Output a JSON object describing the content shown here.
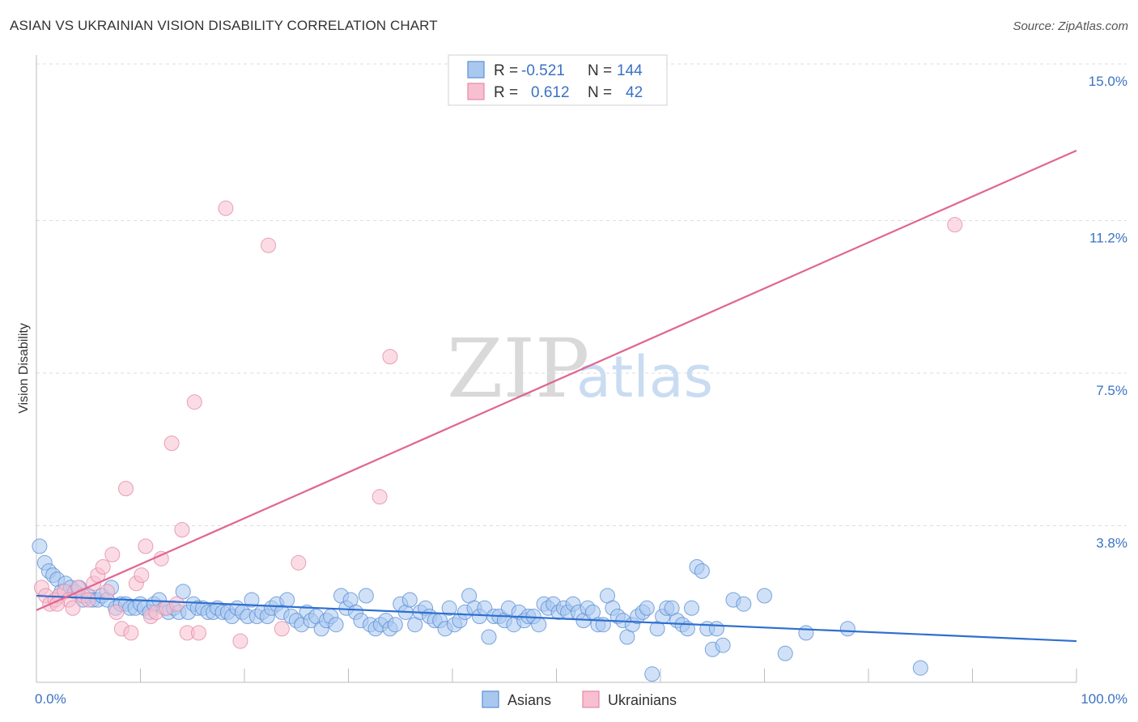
{
  "title": "ASIAN VS UKRAINIAN VISION DISABILITY CORRELATION CHART",
  "source": "Source: ZipAtlas.com",
  "watermark": {
    "zip": "ZIP",
    "atlas": "atlas"
  },
  "legend_box": {
    "rows": [
      {
        "r_label": "R =",
        "r_value": "-0.521",
        "n_label": "N =",
        "n_value": "144",
        "color": "#a9c8f0",
        "stroke": "#5b8fd6"
      },
      {
        "r_label": "R =",
        "r_value": "0.612",
        "n_label": "N =",
        "n_value": "42",
        "color": "#f7bfd0",
        "stroke": "#e48aa8"
      }
    ]
  },
  "chart_data": {
    "type": "scatter",
    "title": "ASIAN VS UKRAINIAN VISION DISABILITY CORRELATION CHART",
    "xlabel": "",
    "ylabel": "Vision Disability",
    "xlim": [
      0,
      100
    ],
    "ylim": [
      0,
      15.0
    ],
    "x_tick_labels": [
      "0.0%",
      "100.0%"
    ],
    "y_ticks": [
      3.8,
      7.5,
      11.2,
      15.0
    ],
    "y_tick_labels": [
      "3.8%",
      "7.5%",
      "11.2%",
      "15.0%"
    ],
    "legend": [
      "Asians",
      "Ukrainians"
    ],
    "series": [
      {
        "name": "Asians",
        "color": "#5b8fd6",
        "fill": "#a9c8f0",
        "trend": {
          "x": [
            0,
            100
          ],
          "y": [
            2.1,
            1.0
          ]
        },
        "points": [
          [
            0.3,
            3.3
          ],
          [
            0.8,
            2.9
          ],
          [
            1.2,
            2.7
          ],
          [
            1.6,
            2.6
          ],
          [
            2.0,
            2.5
          ],
          [
            2.4,
            2.2
          ],
          [
            2.8,
            2.4
          ],
          [
            3.3,
            2.3
          ],
          [
            3.7,
            2.2
          ],
          [
            4.1,
            2.3
          ],
          [
            4.5,
            2.0
          ],
          [
            5.0,
            2.1
          ],
          [
            5.4,
            2.0
          ],
          [
            5.9,
            2.0
          ],
          [
            6.3,
            2.1
          ],
          [
            6.8,
            2.0
          ],
          [
            7.2,
            2.3
          ],
          [
            7.6,
            1.8
          ],
          [
            8.1,
            1.9
          ],
          [
            8.6,
            1.9
          ],
          [
            9.0,
            1.8
          ],
          [
            9.5,
            1.8
          ],
          [
            10.0,
            1.9
          ],
          [
            10.4,
            1.8
          ],
          [
            10.9,
            1.7
          ],
          [
            11.3,
            1.9
          ],
          [
            11.8,
            2.0
          ],
          [
            12.3,
            1.8
          ],
          [
            12.7,
            1.7
          ],
          [
            13.2,
            1.8
          ],
          [
            13.7,
            1.7
          ],
          [
            14.1,
            2.2
          ],
          [
            14.6,
            1.7
          ],
          [
            15.1,
            1.9
          ],
          [
            15.5,
            1.8
          ],
          [
            16.0,
            1.8
          ],
          [
            16.5,
            1.7
          ],
          [
            17.0,
            1.7
          ],
          [
            17.4,
            1.8
          ],
          [
            17.9,
            1.7
          ],
          [
            18.4,
            1.7
          ],
          [
            18.8,
            1.6
          ],
          [
            19.3,
            1.8
          ],
          [
            19.8,
            1.7
          ],
          [
            20.3,
            1.6
          ],
          [
            20.7,
            2.0
          ],
          [
            21.2,
            1.6
          ],
          [
            21.7,
            1.7
          ],
          [
            22.2,
            1.6
          ],
          [
            22.6,
            1.8
          ],
          [
            23.1,
            1.9
          ],
          [
            23.6,
            1.7
          ],
          [
            24.1,
            2.0
          ],
          [
            24.5,
            1.6
          ],
          [
            25.0,
            1.5
          ],
          [
            25.5,
            1.4
          ],
          [
            26.0,
            1.7
          ],
          [
            26.4,
            1.5
          ],
          [
            26.9,
            1.6
          ],
          [
            27.4,
            1.3
          ],
          [
            27.9,
            1.5
          ],
          [
            28.3,
            1.6
          ],
          [
            28.8,
            1.4
          ],
          [
            29.3,
            2.1
          ],
          [
            29.8,
            1.8
          ],
          [
            30.2,
            2.0
          ],
          [
            30.7,
            1.7
          ],
          [
            31.2,
            1.5
          ],
          [
            31.7,
            2.1
          ],
          [
            32.1,
            1.4
          ],
          [
            32.6,
            1.3
          ],
          [
            33.1,
            1.4
          ],
          [
            33.6,
            1.5
          ],
          [
            34.0,
            1.3
          ],
          [
            34.5,
            1.4
          ],
          [
            35.0,
            1.9
          ],
          [
            35.5,
            1.7
          ],
          [
            35.9,
            2.0
          ],
          [
            36.4,
            1.4
          ],
          [
            36.9,
            1.7
          ],
          [
            37.4,
            1.8
          ],
          [
            37.8,
            1.6
          ],
          [
            38.3,
            1.5
          ],
          [
            38.8,
            1.5
          ],
          [
            39.3,
            1.3
          ],
          [
            39.7,
            1.8
          ],
          [
            40.2,
            1.4
          ],
          [
            40.7,
            1.5
          ],
          [
            41.2,
            1.7
          ],
          [
            41.6,
            2.1
          ],
          [
            42.1,
            1.8
          ],
          [
            42.6,
            1.6
          ],
          [
            43.1,
            1.8
          ],
          [
            43.5,
            1.1
          ],
          [
            44.0,
            1.6
          ],
          [
            44.5,
            1.6
          ],
          [
            45.0,
            1.5
          ],
          [
            45.4,
            1.8
          ],
          [
            45.9,
            1.4
          ],
          [
            46.4,
            1.7
          ],
          [
            46.9,
            1.5
          ],
          [
            47.3,
            1.6
          ],
          [
            47.8,
            1.6
          ],
          [
            48.3,
            1.4
          ],
          [
            48.8,
            1.9
          ],
          [
            49.2,
            1.8
          ],
          [
            49.7,
            1.9
          ],
          [
            50.2,
            1.7
          ],
          [
            50.7,
            1.8
          ],
          [
            51.1,
            1.7
          ],
          [
            51.6,
            1.9
          ],
          [
            52.1,
            1.7
          ],
          [
            52.6,
            1.5
          ],
          [
            53.0,
            1.8
          ],
          [
            53.5,
            1.7
          ],
          [
            54.0,
            1.4
          ],
          [
            54.5,
            1.4
          ],
          [
            54.9,
            2.1
          ],
          [
            55.4,
            1.8
          ],
          [
            55.9,
            1.6
          ],
          [
            56.4,
            1.5
          ],
          [
            56.8,
            1.1
          ],
          [
            57.3,
            1.4
          ],
          [
            57.8,
            1.6
          ],
          [
            58.3,
            1.7
          ],
          [
            58.7,
            1.8
          ],
          [
            59.2,
            0.2
          ],
          [
            59.7,
            1.3
          ],
          [
            60.2,
            1.6
          ],
          [
            60.6,
            1.8
          ],
          [
            61.1,
            1.8
          ],
          [
            61.6,
            1.5
          ],
          [
            62.1,
            1.4
          ],
          [
            62.6,
            1.3
          ],
          [
            63.0,
            1.8
          ],
          [
            63.5,
            2.8
          ],
          [
            64.0,
            2.7
          ],
          [
            64.5,
            1.3
          ],
          [
            65.0,
            0.8
          ],
          [
            65.4,
            1.3
          ],
          [
            66.0,
            0.9
          ],
          [
            67.0,
            2.0
          ],
          [
            68.0,
            1.9
          ],
          [
            70.0,
            2.1
          ],
          [
            72.0,
            0.7
          ],
          [
            74.0,
            1.2
          ],
          [
            78.0,
            1.3
          ],
          [
            85.0,
            0.35
          ]
        ]
      },
      {
        "name": "Ukrainians",
        "color": "#e48aa8",
        "fill": "#f7bfd0",
        "trend": {
          "x": [
            0,
            100
          ],
          "y": [
            1.75,
            12.9
          ]
        },
        "points": [
          [
            0.5,
            2.3
          ],
          [
            0.9,
            2.1
          ],
          [
            1.3,
            1.9
          ],
          [
            1.8,
            2.0
          ],
          [
            2.2,
            2.1
          ],
          [
            2.7,
            2.2
          ],
          [
            3.1,
            2.0
          ],
          [
            3.5,
            1.8
          ],
          [
            4.0,
            2.3
          ],
          [
            4.5,
            2.1
          ],
          [
            5.0,
            2.0
          ],
          [
            5.5,
            2.4
          ],
          [
            5.9,
            2.6
          ],
          [
            6.4,
            2.8
          ],
          [
            6.8,
            2.2
          ],
          [
            7.3,
            3.1
          ],
          [
            7.7,
            1.7
          ],
          [
            8.2,
            1.3
          ],
          [
            8.6,
            4.7
          ],
          [
            9.1,
            1.2
          ],
          [
            9.6,
            2.4
          ],
          [
            10.1,
            2.6
          ],
          [
            10.5,
            3.3
          ],
          [
            11.0,
            1.6
          ],
          [
            11.5,
            1.7
          ],
          [
            12.0,
            3.0
          ],
          [
            12.5,
            1.8
          ],
          [
            13.0,
            5.8
          ],
          [
            13.5,
            1.9
          ],
          [
            14.0,
            3.7
          ],
          [
            14.5,
            1.2
          ],
          [
            15.2,
            6.8
          ],
          [
            15.6,
            1.2
          ],
          [
            18.2,
            11.5
          ],
          [
            19.6,
            1.0
          ],
          [
            22.3,
            10.6
          ],
          [
            23.6,
            1.3
          ],
          [
            25.2,
            2.9
          ],
          [
            33.0,
            4.5
          ],
          [
            34.0,
            7.9
          ],
          [
            88.3,
            11.1
          ],
          [
            2.0,
            1.9
          ]
        ]
      }
    ]
  }
}
